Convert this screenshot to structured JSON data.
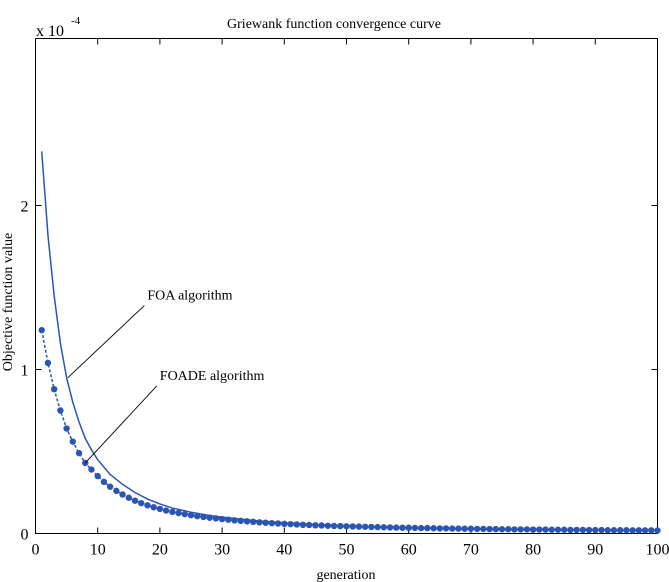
{
  "chart_data": {
    "type": "line",
    "title": "Griewank  function convergence curve",
    "xlabel": "generation",
    "ylabel": "Objective function value",
    "y_exponent_base": "x 10",
    "y_exponent_power": "-4",
    "xlim": [
      0,
      100
    ],
    "ylim": [
      0,
      3
    ],
    "x_ticks": [
      0,
      10,
      20,
      30,
      40,
      50,
      60,
      70,
      80,
      90,
      100
    ],
    "y_ticks": [
      0,
      1,
      2
    ],
    "grid": false,
    "series": [
      {
        "name": "FOA  algorithm",
        "color": "#2b55b3",
        "style": "solid",
        "marker": "none",
        "x": [
          1,
          2,
          3,
          4,
          5,
          6,
          7,
          8,
          9,
          10,
          12,
          14,
          16,
          18,
          20,
          22,
          25,
          28,
          30,
          35,
          40,
          45,
          50,
          55,
          60,
          65,
          70,
          75,
          80,
          85,
          90,
          95,
          100
        ],
        "y": [
          2.33,
          1.82,
          1.45,
          1.16,
          0.95,
          0.8,
          0.68,
          0.58,
          0.51,
          0.45,
          0.36,
          0.3,
          0.25,
          0.21,
          0.18,
          0.155,
          0.13,
          0.11,
          0.1,
          0.08,
          0.065,
          0.055,
          0.047,
          0.04,
          0.035,
          0.031,
          0.028,
          0.025,
          0.023,
          0.021,
          0.02,
          0.019,
          0.018
        ]
      },
      {
        "name": "FOADE  algorithm",
        "color": "#2b55b3",
        "style": "dashed",
        "marker": "circle",
        "x": [
          1,
          2,
          3,
          4,
          5,
          6,
          7,
          8,
          9,
          10,
          11,
          12,
          13,
          14,
          15,
          16,
          17,
          18,
          19,
          20,
          21,
          22,
          23,
          24,
          25,
          26,
          27,
          28,
          29,
          30,
          31,
          32,
          33,
          34,
          35,
          36,
          37,
          38,
          39,
          40,
          41,
          42,
          43,
          44,
          45,
          46,
          47,
          48,
          49,
          50,
          51,
          52,
          53,
          54,
          55,
          56,
          57,
          58,
          59,
          60,
          61,
          62,
          63,
          64,
          65,
          66,
          67,
          68,
          69,
          70,
          71,
          72,
          73,
          74,
          75,
          76,
          77,
          78,
          79,
          80,
          81,
          82,
          83,
          84,
          85,
          86,
          87,
          88,
          89,
          90,
          91,
          92,
          93,
          94,
          95,
          96,
          97,
          98,
          99,
          100
        ],
        "y": [
          1.24,
          1.04,
          0.88,
          0.75,
          0.64,
          0.56,
          0.49,
          0.43,
          0.39,
          0.35,
          0.315,
          0.285,
          0.26,
          0.238,
          0.218,
          0.2,
          0.185,
          0.172,
          0.16,
          0.15,
          0.14,
          0.132,
          0.125,
          0.118,
          0.112,
          0.106,
          0.101,
          0.096,
          0.092,
          0.088,
          0.084,
          0.08,
          0.077,
          0.074,
          0.071,
          0.068,
          0.066,
          0.063,
          0.061,
          0.059,
          0.057,
          0.055,
          0.053,
          0.052,
          0.05,
          0.049,
          0.047,
          0.046,
          0.045,
          0.044,
          0.043,
          0.042,
          0.041,
          0.04,
          0.039,
          0.038,
          0.037,
          0.036,
          0.035,
          0.035,
          0.034,
          0.033,
          0.033,
          0.032,
          0.031,
          0.031,
          0.03,
          0.03,
          0.029,
          0.029,
          0.028,
          0.028,
          0.027,
          0.027,
          0.026,
          0.026,
          0.025,
          0.025,
          0.025,
          0.024,
          0.024,
          0.024,
          0.023,
          0.023,
          0.023,
          0.022,
          0.022,
          0.022,
          0.021,
          0.021,
          0.021,
          0.02,
          0.02,
          0.02,
          0.02,
          0.019,
          0.019,
          0.019,
          0.019,
          0.018
        ]
      }
    ],
    "annotations": [
      {
        "text": "FOA  algorithm",
        "series_index": 0,
        "target_x": 5.2,
        "target_y": 0.95,
        "label_x": 17.5,
        "label_y": 1.39
      },
      {
        "text": "FOADE  algorithm",
        "series_index": 1,
        "target_x": 8,
        "target_y": 0.43,
        "label_x": 19.5,
        "label_y": 0.9
      }
    ]
  }
}
